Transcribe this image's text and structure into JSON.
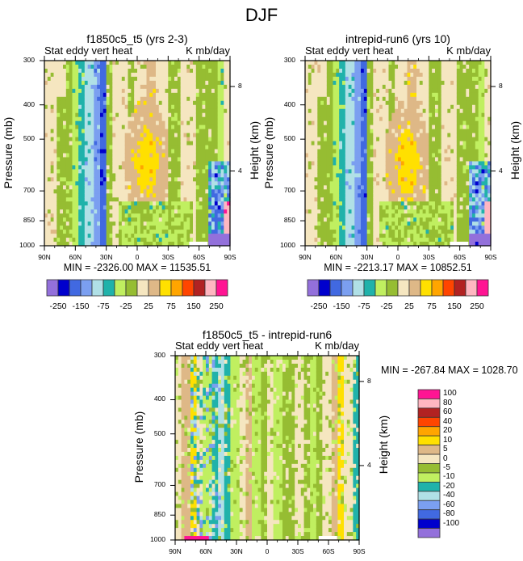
{
  "main_title": "DJF",
  "colors": {
    "cmap": [
      "#9370db",
      "#0000cd",
      "#4169e1",
      "#7b9ff0",
      "#b0e0e6",
      "#20b2aa",
      "#c0ef60",
      "#96bd32",
      "#f5e6c0",
      "#deb887",
      "#ffe000",
      "#ffa500",
      "#ff4500",
      "#b22222",
      "#ffb6c1",
      "#ff1493"
    ]
  },
  "chart_data": [
    {
      "type": "heatmap",
      "id": "panel1",
      "title": "f1850c5_t5 (yrs 2-3)",
      "subtitle_left": "Stat eddy vert heat",
      "subtitle_right": "K mb/day",
      "xlabel": "",
      "ylabel": "Pressure (mb)",
      "ylabel_right": "Height (km)",
      "x_ticks": [
        "90N",
        "60N",
        "30N",
        "0",
        "30S",
        "60S",
        "90S"
      ],
      "y_ticks": [
        "300",
        "400",
        "500",
        "700",
        "850",
        "1000"
      ],
      "y_ticks_right": [
        "8",
        "4"
      ],
      "xlim": [
        "90N",
        "90S"
      ],
      "ylim": [
        1000,
        300
      ],
      "min_max_text": "MIN = -2326.00  MAX = 11535.51",
      "colorbar": {
        "orientation": "horizontal",
        "labels": [
          "-250",
          "-150",
          "-75",
          "-25",
          "25",
          "75",
          "150",
          "250"
        ],
        "levels": [
          -250,
          -200,
          -150,
          -100,
          -75,
          -50,
          -25,
          0,
          25,
          50,
          75,
          100,
          150,
          200,
          250
        ]
      }
    },
    {
      "type": "heatmap",
      "id": "panel2",
      "title": "intrepid-run6 (yrs 10)",
      "subtitle_left": "Stat eddy vert heat",
      "subtitle_right": "K mb/day",
      "xlabel": "",
      "ylabel": "Pressure (mb)",
      "ylabel_right": "Height (km)",
      "x_ticks": [
        "90N",
        "60N",
        "30N",
        "0",
        "30S",
        "60S",
        "90S"
      ],
      "y_ticks": [
        "300",
        "400",
        "500",
        "700",
        "850",
        "1000"
      ],
      "y_ticks_right": [
        "8",
        "4"
      ],
      "xlim": [
        "90N",
        "90S"
      ],
      "ylim": [
        1000,
        300
      ],
      "min_max_text": "MIN = -2213.17  MAX = 10852.51",
      "colorbar": {
        "orientation": "horizontal",
        "labels": [
          "-250",
          "-150",
          "-75",
          "-25",
          "25",
          "75",
          "150",
          "250"
        ],
        "levels": [
          -250,
          -200,
          -150,
          -100,
          -75,
          -50,
          -25,
          0,
          25,
          50,
          75,
          100,
          150,
          200,
          250
        ]
      }
    },
    {
      "type": "heatmap",
      "id": "panel3",
      "title": "f1850c5_t5 - intrepid-run6",
      "subtitle_left": "Stat eddy vert heat",
      "subtitle_right": "K mb/day",
      "xlabel": "",
      "ylabel": "Pressure (mb)",
      "ylabel_right": "Height (km)",
      "x_ticks": [
        "90N",
        "60N",
        "30N",
        "0",
        "30S",
        "60S",
        "90S"
      ],
      "y_ticks": [
        "300",
        "400",
        "500",
        "700",
        "850",
        "1000"
      ],
      "y_ticks_right": [
        "8",
        "4"
      ],
      "xlim": [
        "90N",
        "90S"
      ],
      "ylim": [
        1000,
        300
      ],
      "min_max_text": "MIN = -267.84  MAX = 1028.70",
      "colorbar": {
        "orientation": "vertical",
        "labels": [
          "100",
          "80",
          "60",
          "40",
          "20",
          "10",
          "5",
          "0",
          "-5",
          "-10",
          "-20",
          "-40",
          "-60",
          "-80",
          "-100"
        ],
        "levels": [
          -100,
          -80,
          -60,
          -40,
          -20,
          -10,
          -5,
          0,
          5,
          10,
          20,
          40,
          60,
          80,
          100
        ]
      }
    }
  ]
}
